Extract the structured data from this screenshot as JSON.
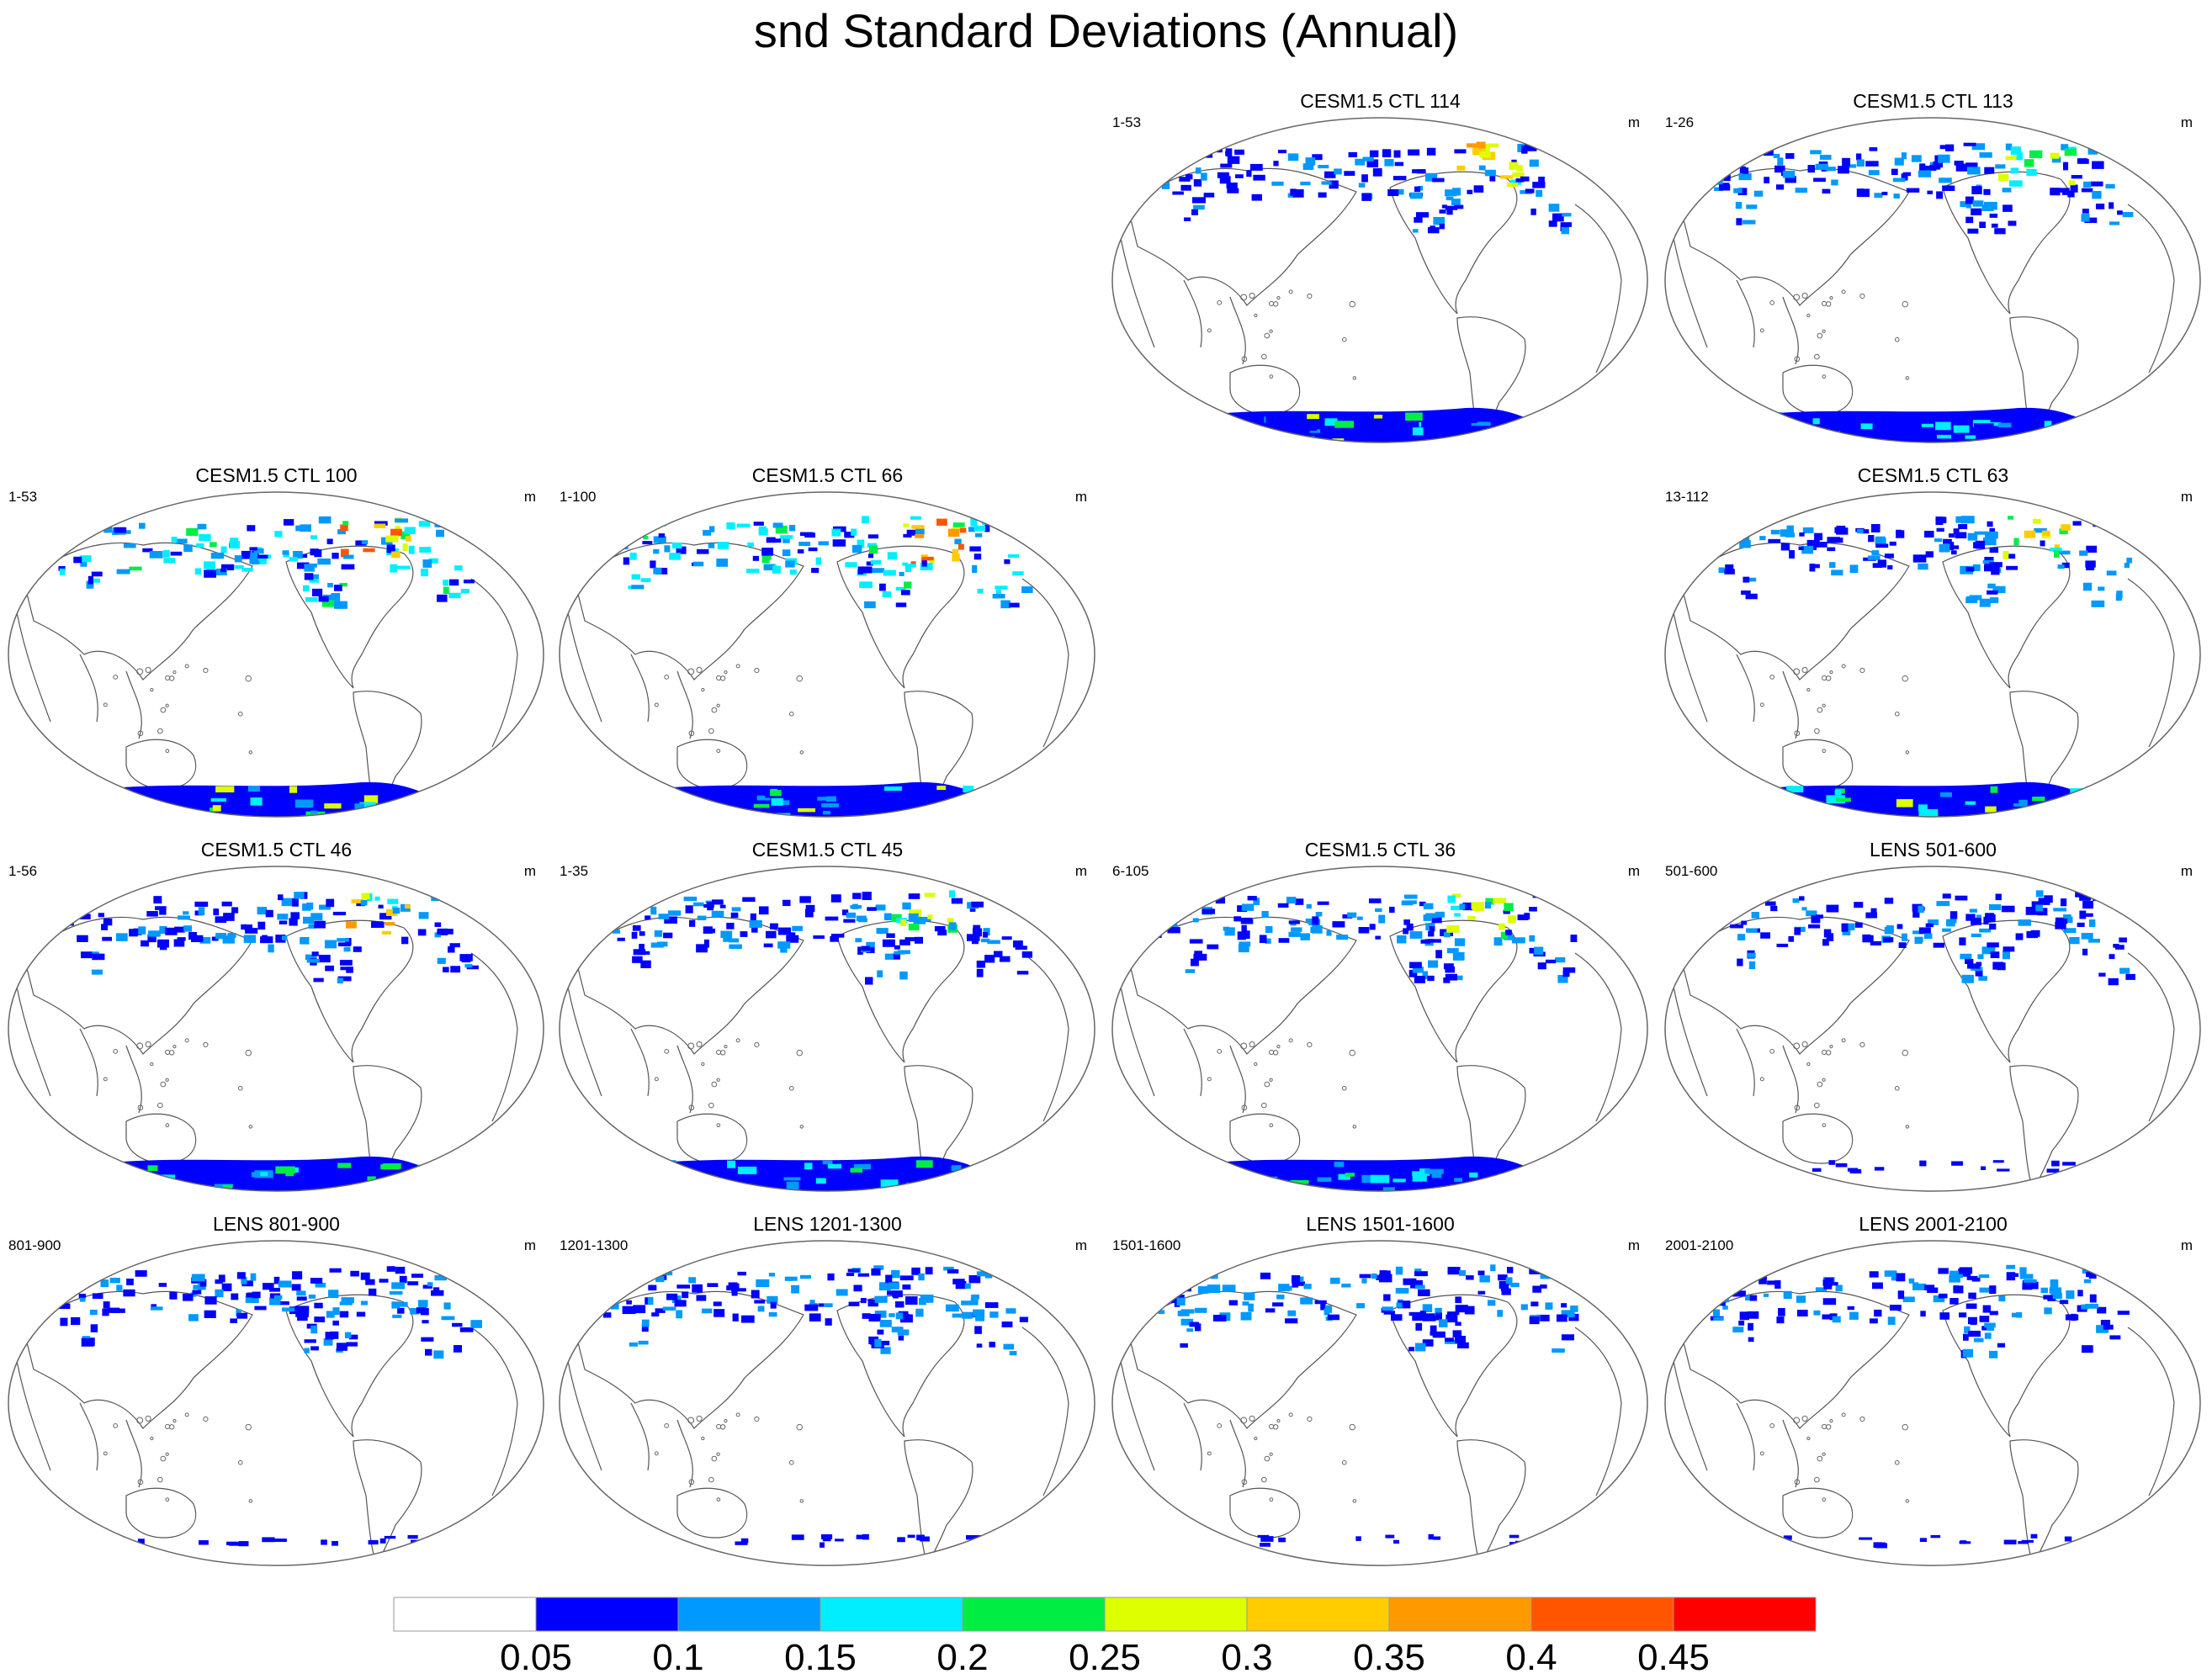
{
  "title": "snd Standard Deviations (Annual)",
  "chart_data": {
    "type": "heatmap",
    "title": "snd Standard Deviations (Annual)",
    "projection": "Robinson-like global map, Pacific-centered",
    "variable": "snd",
    "units": "m",
    "colorbar": {
      "levels": [
        "0.05",
        "0.1",
        "0.15",
        "0.2",
        "0.25",
        "0.3",
        "0.35",
        "0.4",
        "0.45"
      ],
      "colors": [
        "#ffffff",
        "#0000ff",
        "#0099ff",
        "#00eeff",
        "#00ee44",
        "#ddff00",
        "#ffcc00",
        "#ff9900",
        "#ff5500",
        "#ff0000"
      ]
    },
    "panels": [
      {
        "title": "CESM1.5 CTL 114",
        "range": "1-53",
        "units": "m",
        "intensity": 4
      },
      {
        "title": "CESM1.5 CTL 113",
        "range": "1-26",
        "units": "m",
        "intensity": 3
      },
      {
        "title": "CESM1.5 CTL 100",
        "range": "1-53",
        "units": "m",
        "intensity": 5
      },
      {
        "title": "CESM1.5 CTL 66",
        "range": "1-100",
        "units": "m",
        "intensity": 5
      },
      {
        "title": "CESM1.5 CTL 63",
        "range": "13-112",
        "units": "m",
        "intensity": 4
      },
      {
        "title": "CESM1.5 CTL 46",
        "range": "1-56",
        "units": "m",
        "intensity": 4
      },
      {
        "title": "CESM1.5 CTL 45",
        "range": "1-35",
        "units": "m",
        "intensity": 3
      },
      {
        "title": "CESM1.5 CTL 36",
        "range": "6-105",
        "units": "m",
        "intensity": 3
      },
      {
        "title": "LENS 501-600",
        "range": "501-600",
        "units": "m",
        "intensity": 1
      },
      {
        "title": "LENS 801-900",
        "range": "801-900",
        "units": "m",
        "intensity": 1
      },
      {
        "title": "LENS 1201-1300",
        "range": "1201-1300",
        "units": "m",
        "intensity": 1
      },
      {
        "title": "LENS 1501-1600",
        "range": "1501-1600",
        "units": "m",
        "intensity": 1
      },
      {
        "title": "LENS 2001-2100",
        "range": "2001-2100",
        "units": "m",
        "intensity": 1
      }
    ]
  }
}
